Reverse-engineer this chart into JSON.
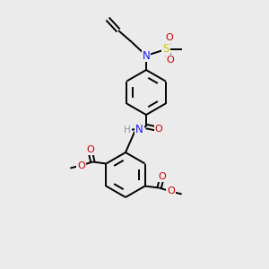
{
  "background_color": "#ebebeb",
  "bond_color": "#000000",
  "atom_colors": {
    "N": "#1a1aff",
    "O": "#cc0000",
    "S": "#cccc00",
    "H": "#7a9faa",
    "C": "#000000"
  },
  "figsize": [
    3.0,
    3.0
  ],
  "dpi": 100
}
